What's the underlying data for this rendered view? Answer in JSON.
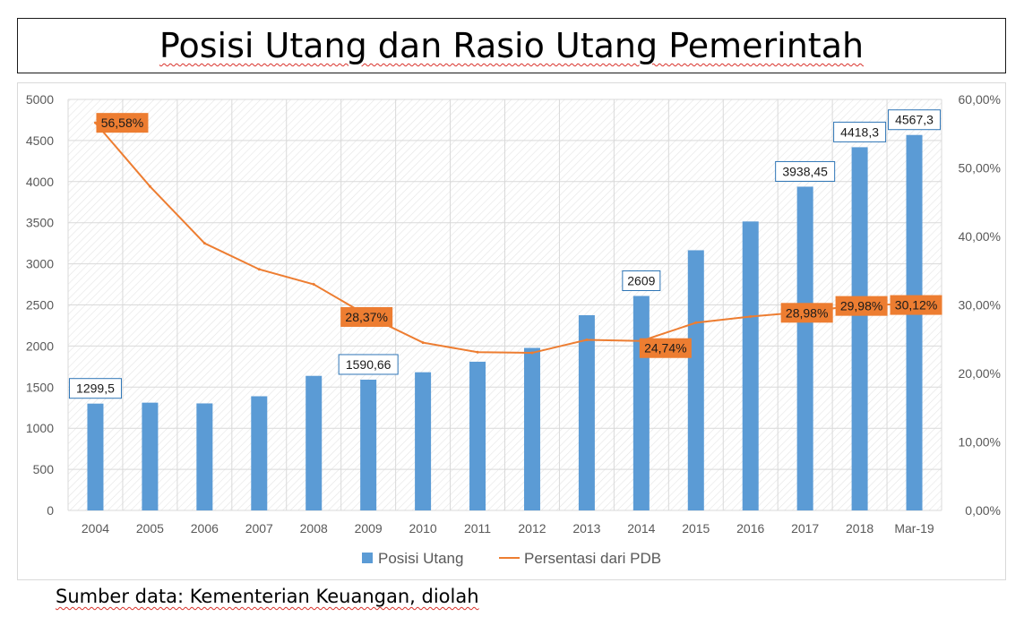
{
  "title": "Posisi Utang dan Rasio Utang Pemerintah",
  "source": "Sumber data: Kementerian Keuangan, diolah",
  "colors": {
    "bar": "#5b9bd5",
    "line": "#ed7d31",
    "grid": "#d9d9d9",
    "axis_text": "#595959"
  },
  "chart_data": {
    "type": "bar",
    "categories": [
      "2004",
      "2005",
      "2006",
      "2007",
      "2008",
      "2009",
      "2010",
      "2011",
      "2012",
      "2013",
      "2014",
      "2015",
      "2016",
      "2017",
      "2018",
      "Mar-19"
    ],
    "series": [
      {
        "name": "Posisi Utang",
        "type": "bar",
        "axis": "left",
        "values": [
          1299.5,
          1311,
          1302,
          1389,
          1637,
          1590.66,
          1681,
          1809,
          1977,
          2375,
          2609,
          3165,
          3515,
          3938.45,
          4418.3,
          4567.3
        ],
        "data_labels": {
          "0": "1299,5",
          "5": "1590,66",
          "10": "2609",
          "13": "3938,45",
          "14": "4418,3",
          "15": "4567,3"
        }
      },
      {
        "name": "Persentasi dari PDB",
        "type": "line",
        "axis": "right",
        "values": [
          56.58,
          47.3,
          39.0,
          35.2,
          33.0,
          28.37,
          24.5,
          23.1,
          23.0,
          24.9,
          24.74,
          27.4,
          28.3,
          28.98,
          29.98,
          30.12
        ],
        "data_labels": {
          "0": "56,58%",
          "5": "28,37%",
          "10": "24,74%",
          "13": "28,98%",
          "14": "29,98%",
          "15": "30,12%"
        }
      }
    ],
    "y_left": {
      "min": 0,
      "max": 5000,
      "ticks": [
        "0",
        "500",
        "1000",
        "1500",
        "2000",
        "2500",
        "3000",
        "3500",
        "4000",
        "4500",
        "5000"
      ]
    },
    "y_right": {
      "min": 0,
      "max": 60,
      "ticks": [
        "0,00%",
        "10,00%",
        "20,00%",
        "30,00%",
        "40,00%",
        "50,00%",
        "60,00%"
      ]
    },
    "grid": true,
    "legend": {
      "position": "bottom",
      "items": [
        "Posisi Utang",
        "Persentasi dari PDB"
      ]
    }
  }
}
